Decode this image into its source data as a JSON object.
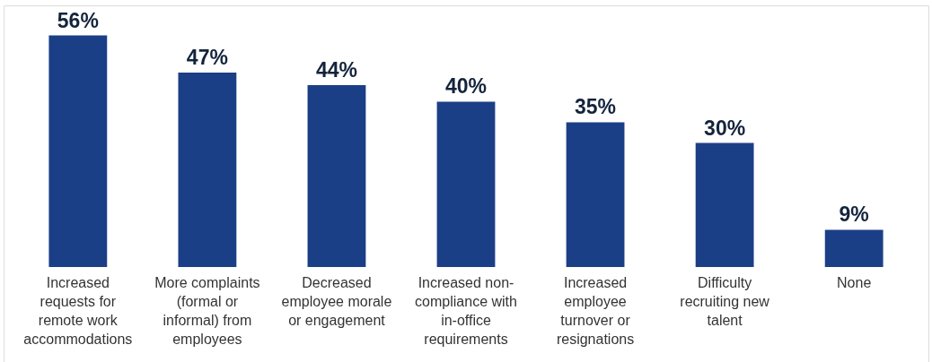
{
  "chart_data": {
    "type": "bar",
    "categories": [
      "Increased requests for remote work accommodations",
      "More complaints (formal or informal) from employees",
      "Decreased employee morale or engagement",
      "Increased non-compliance with in-office requirements",
      "Increased employee turnover or resignations",
      "Difficulty recruiting new talent",
      "None"
    ],
    "values": [
      56,
      47,
      44,
      40,
      35,
      30,
      9
    ],
    "value_labels": [
      "56%",
      "47%",
      "44%",
      "40%",
      "35%",
      "30%",
      "9%"
    ],
    "color": "#1b3f86"
  }
}
